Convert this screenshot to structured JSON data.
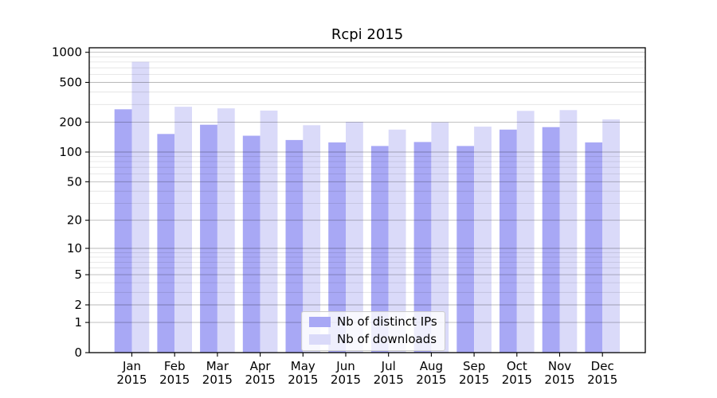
{
  "chart_data": {
    "type": "bar",
    "title": "Rcpi 2015",
    "categories": [
      "Jan",
      "Feb",
      "Mar",
      "Apr",
      "May",
      "Jun",
      "Jul",
      "Aug",
      "Sep",
      "Oct",
      "Nov",
      "Dec"
    ],
    "year": "2015",
    "series": [
      {
        "name": "Nb of distinct IPs",
        "color": "#a8a8f5",
        "values": [
          269,
          152,
          188,
          146,
          132,
          125,
          115,
          126,
          115,
          168,
          178,
          125
        ]
      },
      {
        "name": "Nb of downloads",
        "color": "#dadaf9",
        "values": [
          802,
          285,
          275,
          261,
          186,
          201,
          168,
          199,
          180,
          259,
          264,
          213
        ]
      }
    ],
    "yscale": "log1p",
    "ylim": [
      0,
      1000
    ],
    "yticks": [
      0,
      1,
      2,
      5,
      10,
      20,
      50,
      100,
      200,
      500,
      1000
    ],
    "yticks_minor": [
      3,
      4,
      6,
      7,
      8,
      9,
      30,
      40,
      60,
      70,
      80,
      90,
      300,
      400,
      600,
      700,
      800,
      900
    ],
    "grid": true,
    "legend_position": "lower center",
    "colors": {
      "grid_major": "rgba(0,0,0,0.28)",
      "grid_minor": "rgba(0,0,0,0.12)",
      "spine": "#000000",
      "tick_text": "#000000",
      "background": "#ffffff"
    }
  }
}
